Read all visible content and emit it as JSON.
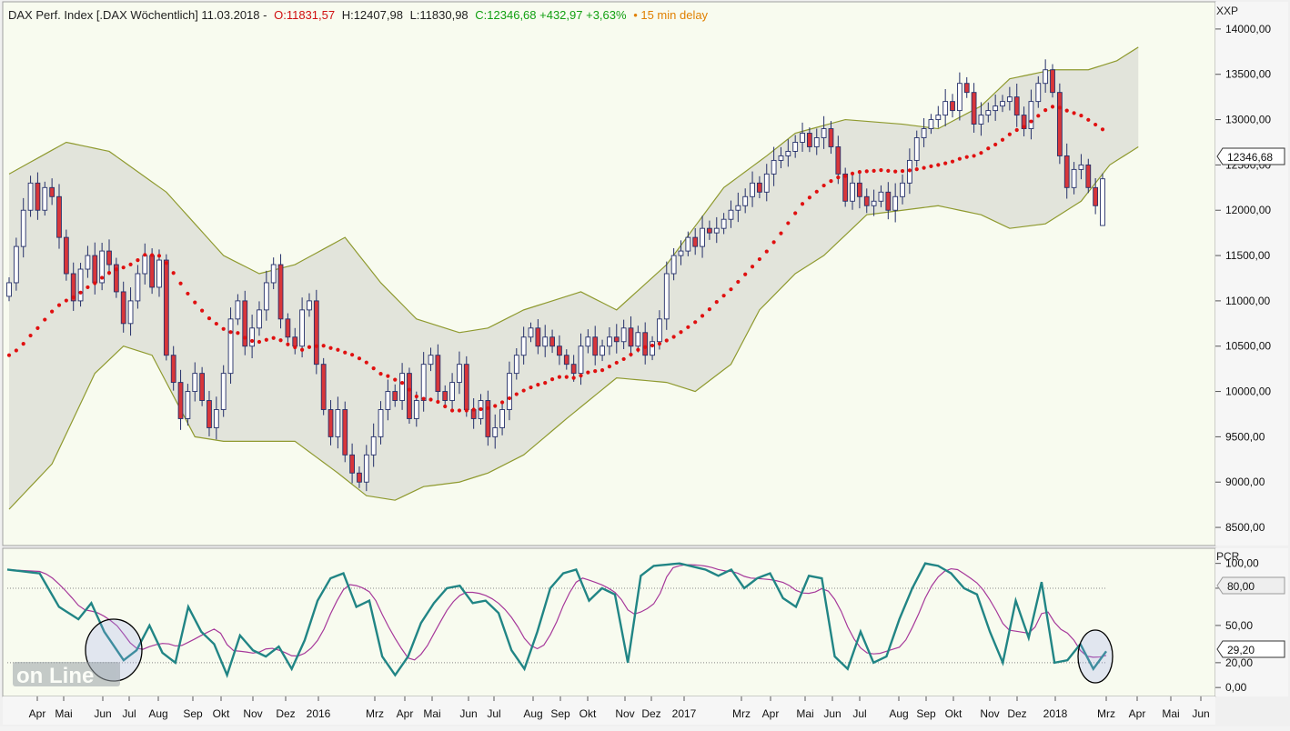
{
  "header": {
    "instrument": "DAX Perf. Index [.DAX Wöchentlich] 11.03.2018 -",
    "open": "O:11831,57",
    "high": "H:12407,98",
    "low": "L:11830,98",
    "close": "C:12346,68 +432,97 +3,63%",
    "delay": "• 15 min delay"
  },
  "price_axis": {
    "unit": "XXP",
    "ticks": [
      "14000,00",
      "13500,00",
      "13000,00",
      "12500,00",
      "12000,00",
      "11500,00",
      "11000,00",
      "10500,00",
      "10000,00",
      "9500,00",
      "9000,00",
      "8500,00"
    ],
    "last_price": "12346,68"
  },
  "indicator": {
    "name": "PCR",
    "ticks": [
      "100,00",
      "80,00",
      "50,00",
      "20,00",
      "0,00"
    ],
    "current": "29,20"
  },
  "x_axis": {
    "labels": [
      "Apr",
      "Mai",
      "Jun",
      "Jul",
      "Aug",
      "Sep",
      "Okt",
      "Nov",
      "Dez",
      "2016",
      "Mrz",
      "Apr",
      "Mai",
      "Jun",
      "Jul",
      "Aug",
      "Sep",
      "Okt",
      "Nov",
      "Dez",
      "2017",
      "Mrz",
      "Apr",
      "Mai",
      "Jun",
      "Jul",
      "Aug",
      "Sep",
      "Okt",
      "Nov",
      "Dez",
      "2018",
      "Mrz",
      "Apr",
      "Mai",
      "Jun"
    ]
  },
  "watermark": "on Line",
  "colors": {
    "background": "#f8fbef",
    "band_fill": "#dfe1d8",
    "band_line": "#8f9a2f",
    "ma_dots": "#e01010",
    "up_candle": "#ffffff",
    "down_candle": "#d8363a",
    "candle_outline": "#25306a",
    "pcr_line": "#218585",
    "pcr_signal": "#a6389a",
    "open_text": "#d01010",
    "close_text": "#12a012",
    "delay_text": "#e08000"
  },
  "chart_data": {
    "type": "candlestick",
    "title": "DAX Perf. Index [.DAX Wöchentlich]",
    "period": "weekly",
    "last_bar": {
      "date": "11.03.2018",
      "open": 11831.57,
      "high": 12407.98,
      "low": 11830.98,
      "close": 12346.68,
      "change": 432.97,
      "change_pct": 3.63
    },
    "ylim": [
      8300,
      14300
    ],
    "yticks": [
      8500,
      9000,
      9500,
      10000,
      10500,
      11000,
      11500,
      12000,
      12500,
      13000,
      13500,
      14000
    ],
    "close_series": [
      11200,
      11600,
      12000,
      12300,
      12000,
      12250,
      12150,
      11700,
      11300,
      11000,
      11350,
      11500,
      11200,
      11550,
      11400,
      11100,
      10750,
      11000,
      11300,
      11500,
      11150,
      11450,
      10400,
      10100,
      9700,
      10000,
      10200,
      9900,
      9600,
      9800,
      10200,
      10800,
      11000,
      10500,
      10700,
      10900,
      11200,
      11400,
      10800,
      10600,
      10500,
      10900,
      11000,
      10300,
      9800,
      9500,
      9800,
      9300,
      9100,
      9000,
      9300,
      9500,
      9800,
      10000,
      9900,
      10200,
      9700,
      9900,
      10300,
      10400,
      10000,
      9900,
      10100,
      10300,
      9800,
      9700,
      9900,
      9500,
      9600,
      9800,
      10200,
      10400,
      10600,
      10700,
      10500,
      10600,
      10500,
      10400,
      10300,
      10200,
      10500,
      10600,
      10400,
      10500,
      10600,
      10550,
      10700,
      10500,
      10650,
      10400,
      10550,
      10800,
      11300,
      11500,
      11550,
      11700,
      11600,
      11800,
      11750,
      11800,
      11900,
      12000,
      12050,
      12150,
      12300,
      12200,
      12400,
      12550,
      12600,
      12650,
      12750,
      12850,
      12700,
      12800,
      12900,
      12700,
      12400,
      12100,
      12300,
      12150,
      12050,
      12100,
      12200,
      12000,
      12150,
      12300,
      12550,
      12800,
      12900,
      13000,
      13050,
      13200,
      13100,
      13400,
      13300,
      12950,
      13050,
      13100,
      13150,
      13200,
      13250,
      13050,
      12900,
      13200,
      13400,
      13550,
      13300,
      12600,
      12250,
      12450,
      12500,
      12250,
      12050,
      12346.68
    ],
    "ma20_start": 10400,
    "bollinger": {
      "upper_knots": [
        [
          0,
          12400
        ],
        [
          8,
          12750
        ],
        [
          14,
          12650
        ],
        [
          22,
          12200
        ],
        [
          30,
          11500
        ],
        [
          35,
          11300
        ],
        [
          40,
          11400
        ],
        [
          47,
          11700
        ],
        [
          52,
          11200
        ],
        [
          57,
          10800
        ],
        [
          63,
          10650
        ],
        [
          67,
          10700
        ],
        [
          72,
          10900
        ],
        [
          80,
          11100
        ],
        [
          85,
          10900
        ],
        [
          92,
          11400
        ],
        [
          100,
          12250
        ],
        [
          106,
          12600
        ],
        [
          110,
          12850
        ],
        [
          117,
          13000
        ],
        [
          125,
          12950
        ],
        [
          130,
          12900
        ],
        [
          136,
          13150
        ],
        [
          140,
          13450
        ],
        [
          146,
          13550
        ],
        [
          151,
          13550
        ],
        [
          155,
          13650
        ],
        [
          158,
          13800
        ]
      ],
      "lower_knots": [
        [
          0,
          8700
        ],
        [
          6,
          9200
        ],
        [
          12,
          10200
        ],
        [
          16,
          10500
        ],
        [
          20,
          10400
        ],
        [
          26,
          9500
        ],
        [
          30,
          9450
        ],
        [
          34,
          9450
        ],
        [
          40,
          9450
        ],
        [
          46,
          9100
        ],
        [
          50,
          8850
        ],
        [
          54,
          8800
        ],
        [
          58,
          8950
        ],
        [
          63,
          9000
        ],
        [
          67,
          9100
        ],
        [
          72,
          9300
        ],
        [
          78,
          9700
        ],
        [
          85,
          10150
        ],
        [
          92,
          10100
        ],
        [
          96,
          10000
        ],
        [
          101,
          10300
        ],
        [
          105,
          10900
        ],
        [
          110,
          11300
        ],
        [
          114,
          11500
        ],
        [
          120,
          11950
        ],
        [
          125,
          12000
        ],
        [
          130,
          12050
        ],
        [
          136,
          11950
        ],
        [
          140,
          11800
        ],
        [
          145,
          11850
        ],
        [
          150,
          12100
        ],
        [
          154,
          12500
        ],
        [
          158,
          12700
        ]
      ]
    },
    "pcr": {
      "name": "PCR",
      "ylim": [
        -5,
        110
      ],
      "levels": [
        80,
        20
      ],
      "current": 29.2,
      "knots": [
        [
          0,
          95
        ],
        [
          5,
          92
        ],
        [
          8,
          65
        ],
        [
          11,
          55
        ],
        [
          13,
          68
        ],
        [
          15,
          45
        ],
        [
          18,
          22
        ],
        [
          20,
          30
        ],
        [
          22,
          50
        ],
        [
          24,
          28
        ],
        [
          26,
          20
        ],
        [
          28,
          65
        ],
        [
          30,
          45
        ],
        [
          32,
          35
        ],
        [
          34,
          10
        ],
        [
          36,
          42
        ],
        [
          38,
          30
        ],
        [
          40,
          25
        ],
        [
          42,
          33
        ],
        [
          44,
          15
        ],
        [
          46,
          38
        ],
        [
          48,
          70
        ],
        [
          50,
          88
        ],
        [
          52,
          92
        ],
        [
          54,
          65
        ],
        [
          56,
          70
        ],
        [
          58,
          25
        ],
        [
          60,
          10
        ],
        [
          62,
          25
        ],
        [
          64,
          52
        ],
        [
          66,
          68
        ],
        [
          68,
          80
        ],
        [
          70,
          82
        ],
        [
          72,
          68
        ],
        [
          74,
          70
        ],
        [
          76,
          60
        ],
        [
          78,
          30
        ],
        [
          80,
          15
        ],
        [
          82,
          45
        ],
        [
          84,
          80
        ],
        [
          86,
          92
        ],
        [
          88,
          95
        ],
        [
          90,
          70
        ],
        [
          92,
          80
        ],
        [
          94,
          75
        ],
        [
          96,
          20
        ],
        [
          98,
          90
        ],
        [
          100,
          98
        ],
        [
          104,
          100
        ],
        [
          108,
          95
        ],
        [
          110,
          90
        ],
        [
          112,
          95
        ],
        [
          114,
          80
        ],
        [
          116,
          88
        ],
        [
          118,
          92
        ],
        [
          120,
          72
        ],
        [
          122,
          65
        ],
        [
          124,
          90
        ],
        [
          126,
          88
        ],
        [
          128,
          25
        ],
        [
          130,
          15
        ],
        [
          132,
          45
        ],
        [
          134,
          20
        ],
        [
          136,
          25
        ],
        [
          138,
          55
        ],
        [
          140,
          80
        ],
        [
          142,
          100
        ],
        [
          144,
          98
        ],
        [
          146,
          92
        ],
        [
          148,
          80
        ],
        [
          150,
          75
        ],
        [
          152,
          45
        ],
        [
          154,
          20
        ],
        [
          156,
          70
        ],
        [
          158,
          40
        ],
        [
          160,
          85
        ],
        [
          162,
          20
        ],
        [
          164,
          22
        ],
        [
          166,
          35
        ],
        [
          168,
          15
        ],
        [
          170,
          29.2
        ]
      ]
    }
  }
}
